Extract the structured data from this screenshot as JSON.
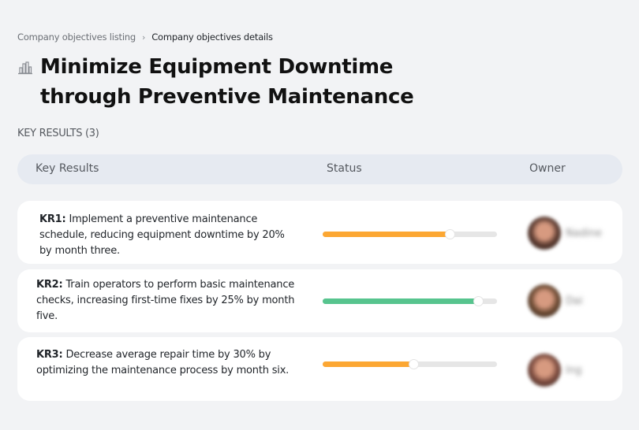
{
  "breadcrumb": {
    "items": [
      {
        "label": "Company objectives listing"
      },
      {
        "label": "Company objectives details"
      }
    ],
    "separator": "›"
  },
  "page": {
    "icon": "building-chart-icon",
    "title": "Minimize Equipment Downtime through Preventive Maintenance"
  },
  "key_results_section": {
    "label": "KEY RESULTS (3)"
  },
  "table": {
    "headers": {
      "key_results": "Key Results",
      "status": "Status",
      "owner": "Owner"
    },
    "rows": [
      {
        "id": "KR1:",
        "text": " Implement a preventive maintenance schedule, reducing equipment downtime by 20% by month three.",
        "progress": 73,
        "status_color": "#fca733",
        "owner": {
          "name": "Nadine",
          "avatar_color": "#5a3a30"
        }
      },
      {
        "id": "KR2:",
        "text": " Train operators to perform basic maintenance checks, increasing first-time fixes by 25% by month five.",
        "progress": 89,
        "status_color": "#57c48e",
        "owner": {
          "name": "Dai",
          "avatar_color": "#6b4a33"
        }
      },
      {
        "id": "KR3:",
        "text": " Decrease average repair time by 30% by optimizing the maintenance process by month six.",
        "progress": 52,
        "status_color": "#fca733",
        "owner": {
          "name": "Ing",
          "avatar_color": "#7a4a3e"
        }
      }
    ]
  }
}
